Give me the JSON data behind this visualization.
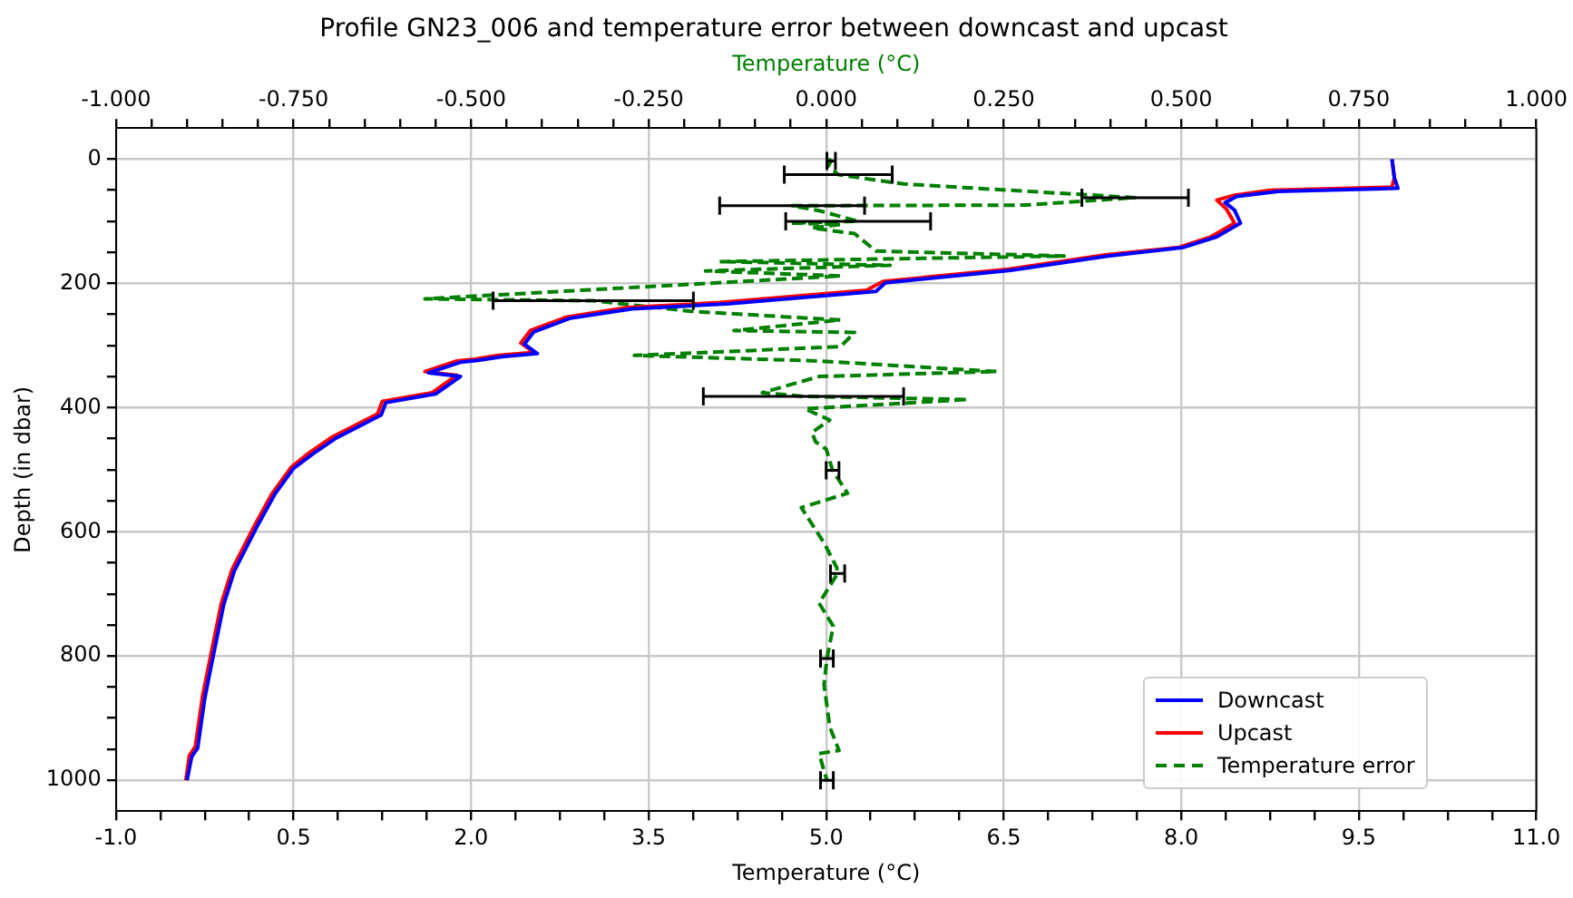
{
  "chart_data": {
    "type": "line",
    "title": "Profile GN23_006 and temperature error between downcast and upcast",
    "xlabel": "Temperature (°C)",
    "x2label": "Temperature (°C)",
    "ylabel": "Depth (in dbar)",
    "xlim": [
      -1,
      11
    ],
    "xticks": [
      {
        "value": -1,
        "label": "-1.0"
      },
      {
        "value": -0.625,
        "label": null
      },
      {
        "value": -0.25,
        "label": null
      },
      {
        "value": 0.125,
        "label": null
      },
      {
        "value": 0.5,
        "label": "0.5"
      },
      {
        "value": 0.875,
        "label": null
      },
      {
        "value": 1.25,
        "label": null
      },
      {
        "value": 1.625,
        "label": null
      },
      {
        "value": 2,
        "label": "2.0"
      },
      {
        "value": 2.375,
        "label": null
      },
      {
        "value": 2.75,
        "label": null
      },
      {
        "value": 3.125,
        "label": null
      },
      {
        "value": 3.5,
        "label": "3.5"
      },
      {
        "value": 3.875,
        "label": null
      },
      {
        "value": 4.25,
        "label": null
      },
      {
        "value": 4.625,
        "label": null
      },
      {
        "value": 5,
        "label": "5.0"
      },
      {
        "value": 5.375,
        "label": null
      },
      {
        "value": 5.75,
        "label": null
      },
      {
        "value": 6.125,
        "label": null
      },
      {
        "value": 6.5,
        "label": "6.5"
      },
      {
        "value": 6.875,
        "label": null
      },
      {
        "value": 7.25,
        "label": null
      },
      {
        "value": 7.625,
        "label": null
      },
      {
        "value": 8,
        "label": "8.0"
      },
      {
        "value": 8.375,
        "label": null
      },
      {
        "value": 8.75,
        "label": null
      },
      {
        "value": 9.125,
        "label": null
      },
      {
        "value": 9.5,
        "label": "9.5"
      },
      {
        "value": 9.875,
        "label": null
      },
      {
        "value": 10.25,
        "label": null
      },
      {
        "value": 10.625,
        "label": null
      },
      {
        "value": 11,
        "label": "11.0"
      }
    ],
    "x2lim": [
      -1,
      1
    ],
    "x2ticks": [
      {
        "value": -1,
        "label": "-1.000"
      },
      {
        "value": -0.95,
        "label": null
      },
      {
        "value": -0.9,
        "label": null
      },
      {
        "value": -0.85,
        "label": null
      },
      {
        "value": -0.8,
        "label": null
      },
      {
        "value": -0.75,
        "label": "-0.750"
      },
      {
        "value": -0.7,
        "label": null
      },
      {
        "value": -0.65,
        "label": null
      },
      {
        "value": -0.6,
        "label": null
      },
      {
        "value": -0.55,
        "label": null
      },
      {
        "value": -0.5,
        "label": "-0.500"
      },
      {
        "value": -0.45,
        "label": null
      },
      {
        "value": -0.4,
        "label": null
      },
      {
        "value": -0.35,
        "label": null
      },
      {
        "value": -0.3,
        "label": null
      },
      {
        "value": -0.25,
        "label": "-0.250"
      },
      {
        "value": -0.2,
        "label": null
      },
      {
        "value": -0.15,
        "label": null
      },
      {
        "value": -0.1,
        "label": null
      },
      {
        "value": -0.05,
        "label": null
      },
      {
        "value": 0,
        "label": "0.000"
      },
      {
        "value": 0.05,
        "label": null
      },
      {
        "value": 0.1,
        "label": null
      },
      {
        "value": 0.15,
        "label": null
      },
      {
        "value": 0.2,
        "label": null
      },
      {
        "value": 0.25,
        "label": "0.250"
      },
      {
        "value": 0.3,
        "label": null
      },
      {
        "value": 0.35,
        "label": null
      },
      {
        "value": 0.4,
        "label": null
      },
      {
        "value": 0.45,
        "label": null
      },
      {
        "value": 0.5,
        "label": "0.500"
      },
      {
        "value": 0.55,
        "label": null
      },
      {
        "value": 0.6,
        "label": null
      },
      {
        "value": 0.65,
        "label": null
      },
      {
        "value": 0.7,
        "label": null
      },
      {
        "value": 0.75,
        "label": "0.750"
      },
      {
        "value": 0.8,
        "label": null
      },
      {
        "value": 0.85,
        "label": null
      },
      {
        "value": 0.9,
        "label": null
      },
      {
        "value": 0.95,
        "label": null
      },
      {
        "value": 1,
        "label": "1.000"
      }
    ],
    "ylim": [
      1050,
      -50
    ],
    "yticks": [
      0,
      {
        "value": 50,
        "label": null
      },
      {
        "value": 100,
        "label": null
      },
      {
        "value": 150,
        "label": null
      },
      200,
      {
        "value": 250,
        "label": null
      },
      {
        "value": 300,
        "label": null
      },
      {
        "value": 350,
        "label": null
      },
      400,
      {
        "value": 450,
        "label": null
      },
      {
        "value": 500,
        "label": null
      },
      {
        "value": 550,
        "label": null
      },
      600,
      {
        "value": 650,
        "label": null
      },
      {
        "value": 700,
        "label": null
      },
      {
        "value": 750,
        "label": null
      },
      800,
      {
        "value": 850,
        "label": null
      },
      {
        "value": 900,
        "label": null
      },
      {
        "value": 950,
        "label": null
      },
      1000
    ],
    "grid": true,
    "legend": "bottom right",
    "series": [
      {
        "name": "Downcast",
        "color": "#0000ff",
        "line_style": "solid",
        "x": [
          9.78,
          9.8,
          9.83,
          8.82,
          8.47,
          8.37,
          8.45,
          8.5,
          8.3,
          8.02,
          7.38,
          6.56,
          5.5,
          5.42,
          4.16,
          3.36,
          2.84,
          2.53,
          2.45,
          2.56,
          2.26,
          2.06,
          1.91,
          1.64,
          1.91,
          1.7,
          1.28,
          1.24,
          0.86,
          0.66,
          0.5,
          0.34,
          0.19,
          0,
          -0.09,
          -0.2,
          -0.25,
          -0.31,
          -0.36,
          -0.4
        ],
        "values": [
          0,
          30,
          47,
          52,
          60,
          70,
          82,
          103,
          125,
          142,
          156,
          179,
          199,
          213,
          233,
          241,
          256,
          278,
          298,
          313,
          318,
          324,
          327,
          344,
          350,
          378,
          392,
          412,
          449,
          475,
          498,
          540,
          592,
          663,
          717,
          820,
          868,
          948,
          962,
          1000
        ]
      },
      {
        "name": "Upcast",
        "color": "#ff0000",
        "line_style": "solid",
        "x": [
          9.78,
          9.8,
          9.78,
          8.75,
          8.45,
          8.3,
          8.38,
          8.45,
          8.25,
          7.98,
          7.36,
          6.54,
          5.48,
          5.34,
          4.1,
          3.32,
          2.81,
          2.5,
          2.42,
          2.53,
          2.23,
          2.03,
          1.88,
          1.61,
          1.88,
          1.67,
          1.25,
          1.21,
          0.83,
          0.63,
          0.48,
          0.32,
          0.17,
          -0.02,
          -0.11,
          -0.22,
          -0.27,
          -0.33,
          -0.38,
          -0.41
        ],
        "values": [
          0,
          30,
          45,
          50,
          58,
          66,
          80,
          103,
          125,
          142,
          154,
          177,
          197,
          211,
          231,
          239,
          254,
          276,
          296,
          311,
          316,
          322,
          325,
          342,
          348,
          376,
          390,
          410,
          447,
          473,
          496,
          538,
          590,
          661,
          715,
          818,
          866,
          946,
          960,
          1000
        ]
      },
      {
        "name": "Temperature error",
        "color": "#008000",
        "line_style": "dashed",
        "axis": "x2",
        "x": [
          0.003,
          0.007,
          0.003,
          0.017,
          0.109,
          0.435,
          0.28,
          -0.048,
          -0.01,
          0.045,
          -0.05,
          0.02,
          -0.02,
          0.04,
          0.07,
          0.335,
          -0.15,
          0.09,
          -0.17,
          0.02,
          -0.12,
          -0.565,
          -0.328,
          -0.19,
          0.02,
          -0.13,
          0.04,
          0.02,
          -0.27,
          -0.01,
          0.24,
          -0.01,
          -0.09,
          -0.032,
          0.2,
          -0.03,
          0.005,
          -0.02,
          -0.015,
          0,
          0.009,
          0.03,
          -0.035,
          -0.003,
          0.015,
          0.016,
          -0.01,
          0.01,
          0.001,
          -0.003,
          0.005,
          0.018,
          -0.01,
          -0.002,
          0.001
        ],
        "values": [
          0,
          3,
          11,
          25,
          40,
          62,
          74,
          75,
          83,
          100,
          103,
          105,
          111,
          120,
          148,
          156,
          165,
          171,
          180,
          188,
          197,
          225,
          228,
          245,
          259,
          276,
          279,
          302,
          316,
          325,
          342,
          350,
          376,
          382,
          387,
          402,
          420,
          440,
          455,
          467,
          501,
          538,
          561,
          618,
          658,
          667,
          715,
          752,
          804,
          846,
          914,
          952,
          957,
          989,
          1000
        ],
        "xerrors": [
          null,
          0.006,
          null,
          0.076,
          null,
          0.075,
          null,
          0.102,
          null,
          0.102,
          null,
          null,
          null,
          null,
          null,
          null,
          null,
          null,
          null,
          null,
          null,
          null,
          0.141,
          null,
          null,
          null,
          null,
          null,
          null,
          null,
          null,
          null,
          null,
          0.141,
          null,
          null,
          null,
          null,
          null,
          null,
          0.009,
          null,
          null,
          null,
          null,
          0.01,
          null,
          null,
          0.009,
          null,
          null,
          null,
          null,
          null,
          0.009
        ]
      }
    ]
  }
}
